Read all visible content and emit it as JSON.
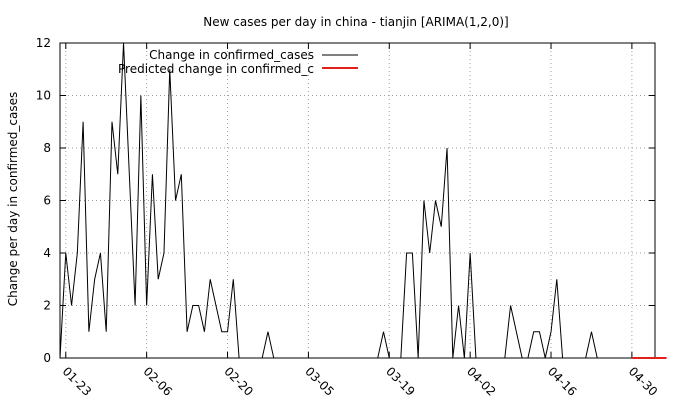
{
  "chart_data": {
    "type": "line",
    "title": "New cases per day in china - tianjin [ARIMA(1,2,0)]",
    "xlabel": "",
    "ylabel": "Change per day in confirmed_cases",
    "ylim": [
      0,
      12
    ],
    "yticks": [
      0,
      2,
      4,
      6,
      8,
      10,
      12
    ],
    "x_start_date": "2020-01-22",
    "x_end_date": "2020-05-04",
    "xtick_labels": [
      {
        "date": "2020-01-23",
        "label": "01-23"
      },
      {
        "date": "2020-02-06",
        "label": "02-06"
      },
      {
        "date": "2020-02-20",
        "label": "02-20"
      },
      {
        "date": "2020-03-05",
        "label": "03-05"
      },
      {
        "date": "2020-03-19",
        "label": "03-19"
      },
      {
        "date": "2020-04-02",
        "label": "04-02"
      },
      {
        "date": "2020-04-16",
        "label": "04-16"
      },
      {
        "date": "2020-04-30",
        "label": "04-30"
      }
    ],
    "grid": true,
    "legend_position": "top-left",
    "series": [
      {
        "name": "Change in confirmed_cases",
        "color": "#000000",
        "x": [
          "2020-01-22",
          "2020-01-23",
          "2020-01-24",
          "2020-01-25",
          "2020-01-26",
          "2020-01-27",
          "2020-01-28",
          "2020-01-29",
          "2020-01-30",
          "2020-01-31",
          "2020-02-01",
          "2020-02-02",
          "2020-02-03",
          "2020-02-04",
          "2020-02-05",
          "2020-02-06",
          "2020-02-07",
          "2020-02-08",
          "2020-02-09",
          "2020-02-10",
          "2020-02-11",
          "2020-02-12",
          "2020-02-13",
          "2020-02-14",
          "2020-02-15",
          "2020-02-16",
          "2020-02-17",
          "2020-02-18",
          "2020-02-19",
          "2020-02-20",
          "2020-02-21",
          "2020-02-22",
          "2020-02-23",
          "2020-02-24",
          "2020-02-25",
          "2020-02-26",
          "2020-02-27",
          "2020-02-28",
          "2020-02-29",
          "2020-03-01",
          "2020-03-02",
          "2020-03-03",
          "2020-03-04",
          "2020-03-05",
          "2020-03-06",
          "2020-03-07",
          "2020-03-08",
          "2020-03-09",
          "2020-03-10",
          "2020-03-11",
          "2020-03-12",
          "2020-03-13",
          "2020-03-14",
          "2020-03-15",
          "2020-03-16",
          "2020-03-17",
          "2020-03-18",
          "2020-03-19",
          "2020-03-20",
          "2020-03-21",
          "2020-03-22",
          "2020-03-23",
          "2020-03-24",
          "2020-03-25",
          "2020-03-26",
          "2020-03-27",
          "2020-03-28",
          "2020-03-29",
          "2020-03-30",
          "2020-03-31",
          "2020-04-01",
          "2020-04-02",
          "2020-04-03",
          "2020-04-04",
          "2020-04-05",
          "2020-04-06",
          "2020-04-07",
          "2020-04-08",
          "2020-04-09",
          "2020-04-10",
          "2020-04-11",
          "2020-04-12",
          "2020-04-13",
          "2020-04-14",
          "2020-04-15",
          "2020-04-16",
          "2020-04-17",
          "2020-04-18",
          "2020-04-19",
          "2020-04-20",
          "2020-04-21",
          "2020-04-22",
          "2020-04-23",
          "2020-04-24"
        ],
        "values": [
          0,
          4,
          2,
          4,
          9,
          1,
          3,
          4,
          1,
          9,
          7,
          12,
          7,
          2,
          10,
          2,
          7,
          3,
          4,
          11,
          6,
          7,
          1,
          2,
          2,
          1,
          3,
          2,
          1,
          1,
          3,
          0,
          0,
          0,
          0,
          0,
          1,
          0,
          0,
          0,
          0,
          0,
          0,
          0,
          0,
          0,
          0,
          0,
          0,
          0,
          0,
          0,
          0,
          0,
          0,
          0,
          1,
          0,
          0,
          0,
          4,
          4,
          0,
          6,
          4,
          6,
          5,
          8,
          0,
          2,
          0,
          4,
          0,
          0,
          0,
          0,
          0,
          0,
          2,
          1,
          0,
          0,
          1,
          1,
          0,
          1,
          3,
          0,
          0,
          0,
          0,
          0,
          1,
          0
        ]
      },
      {
        "name": "Predicted change in confirmed_c",
        "color": "#e0201a",
        "x": [
          "2020-04-30",
          "2020-05-06"
        ],
        "values": [
          0,
          0
        ]
      }
    ]
  }
}
